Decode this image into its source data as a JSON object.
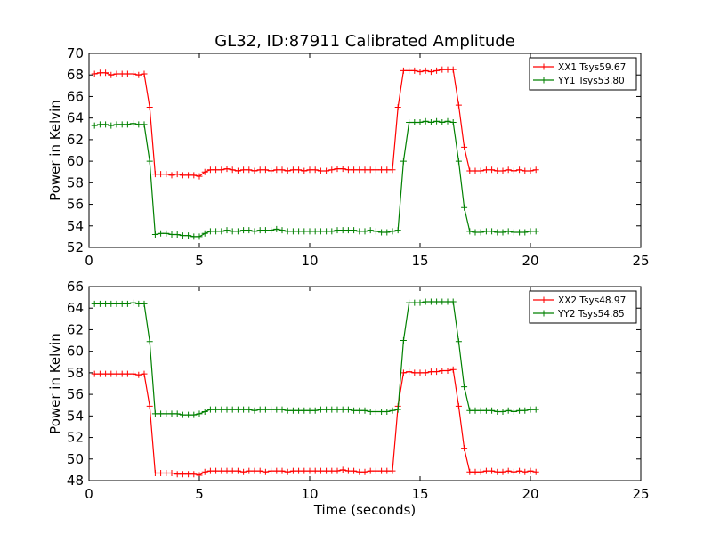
{
  "figure": {
    "title": "GL32, ID:87911 Calibrated Amplitude"
  },
  "chart_data": [
    {
      "type": "line",
      "title": "GL32, ID:87911 Calibrated Amplitude",
      "xlabel": "",
      "ylabel": "Power in Kelvin",
      "xlim": [
        0,
        25
      ],
      "ylim": [
        52,
        70
      ],
      "xticks": [
        0,
        5,
        10,
        15,
        20,
        25
      ],
      "yticks": [
        52,
        54,
        56,
        58,
        60,
        62,
        64,
        66,
        68,
        70
      ],
      "grid": false,
      "legend_position": "top-right",
      "x": [
        0.25,
        0.5,
        0.75,
        1.0,
        1.25,
        1.5,
        1.75,
        2.0,
        2.25,
        2.5,
        2.75,
        3.0,
        3.25,
        3.5,
        3.75,
        4.0,
        4.25,
        4.5,
        4.75,
        5.0,
        5.25,
        5.5,
        5.75,
        6.0,
        6.25,
        6.5,
        6.75,
        7.0,
        7.25,
        7.5,
        7.75,
        8.0,
        8.25,
        8.5,
        8.75,
        9.0,
        9.25,
        9.5,
        9.75,
        10.0,
        10.25,
        10.5,
        10.75,
        11.0,
        11.25,
        11.5,
        11.75,
        12.0,
        12.25,
        12.5,
        12.75,
        13.0,
        13.25,
        13.5,
        13.75,
        14.0,
        14.25,
        14.5,
        14.75,
        15.0,
        15.25,
        15.5,
        15.75,
        16.0,
        16.25,
        16.5,
        16.75,
        17.0,
        17.25,
        17.5,
        17.75,
        18.0,
        18.25,
        18.5,
        18.75,
        19.0,
        19.25,
        19.5,
        19.75,
        20.0,
        20.25
      ],
      "series": [
        {
          "name": "XX1 Tsys59.67",
          "color": "#ff0000",
          "values": [
            68.1,
            68.2,
            68.2,
            68.0,
            68.1,
            68.1,
            68.1,
            68.1,
            68.0,
            68.1,
            65.0,
            58.8,
            58.8,
            58.8,
            58.7,
            58.8,
            58.7,
            58.7,
            58.7,
            58.6,
            59.0,
            59.2,
            59.2,
            59.2,
            59.3,
            59.2,
            59.1,
            59.2,
            59.2,
            59.1,
            59.2,
            59.2,
            59.1,
            59.2,
            59.2,
            59.1,
            59.2,
            59.2,
            59.1,
            59.2,
            59.2,
            59.1,
            59.1,
            59.2,
            59.3,
            59.3,
            59.2,
            59.2,
            59.2,
            59.2,
            59.2,
            59.2,
            59.2,
            59.2,
            59.2,
            65.0,
            68.4,
            68.4,
            68.4,
            68.3,
            68.4,
            68.3,
            68.4,
            68.5,
            68.5,
            68.5,
            65.2,
            61.3,
            59.1,
            59.1,
            59.1,
            59.2,
            59.2,
            59.1,
            59.1,
            59.2,
            59.1,
            59.2,
            59.1,
            59.1,
            59.2
          ]
        },
        {
          "name": "YY1 Tsys53.80",
          "color": "#008000",
          "values": [
            63.3,
            63.4,
            63.4,
            63.3,
            63.4,
            63.4,
            63.4,
            63.5,
            63.4,
            63.4,
            60.0,
            53.2,
            53.3,
            53.3,
            53.2,
            53.2,
            53.1,
            53.1,
            53.0,
            53.0,
            53.3,
            53.5,
            53.5,
            53.5,
            53.6,
            53.5,
            53.5,
            53.6,
            53.6,
            53.5,
            53.6,
            53.6,
            53.6,
            53.7,
            53.6,
            53.5,
            53.5,
            53.5,
            53.5,
            53.5,
            53.5,
            53.5,
            53.5,
            53.5,
            53.6,
            53.6,
            53.6,
            53.6,
            53.5,
            53.5,
            53.6,
            53.5,
            53.4,
            53.4,
            53.5,
            53.6,
            60.0,
            63.6,
            63.6,
            63.6,
            63.7,
            63.6,
            63.7,
            63.6,
            63.7,
            63.6,
            60.0,
            55.7,
            53.5,
            53.4,
            53.4,
            53.5,
            53.5,
            53.4,
            53.4,
            53.5,
            53.4,
            53.4,
            53.4,
            53.5,
            53.5
          ]
        }
      ]
    },
    {
      "type": "line",
      "title": "",
      "xlabel": "Time (seconds)",
      "ylabel": "Power in Kelvin",
      "xlim": [
        0,
        25
      ],
      "ylim": [
        48,
        66
      ],
      "xticks": [
        0,
        5,
        10,
        15,
        20,
        25
      ],
      "yticks": [
        48,
        50,
        52,
        54,
        56,
        58,
        60,
        62,
        64,
        66
      ],
      "grid": false,
      "legend_position": "top-right",
      "x": [
        0.25,
        0.5,
        0.75,
        1.0,
        1.25,
        1.5,
        1.75,
        2.0,
        2.25,
        2.5,
        2.75,
        3.0,
        3.25,
        3.5,
        3.75,
        4.0,
        4.25,
        4.5,
        4.75,
        5.0,
        5.25,
        5.5,
        5.75,
        6.0,
        6.25,
        6.5,
        6.75,
        7.0,
        7.25,
        7.5,
        7.75,
        8.0,
        8.25,
        8.5,
        8.75,
        9.0,
        9.25,
        9.5,
        9.75,
        10.0,
        10.25,
        10.5,
        10.75,
        11.0,
        11.25,
        11.5,
        11.75,
        12.0,
        12.25,
        12.5,
        12.75,
        13.0,
        13.25,
        13.5,
        13.75,
        14.0,
        14.25,
        14.5,
        14.75,
        15.0,
        15.25,
        15.5,
        15.75,
        16.0,
        16.25,
        16.5,
        16.75,
        17.0,
        17.25,
        17.5,
        17.75,
        18.0,
        18.25,
        18.5,
        18.75,
        19.0,
        19.25,
        19.5,
        19.75,
        20.0,
        20.25
      ],
      "series": [
        {
          "name": "XX2 Tsys48.97",
          "color": "#ff0000",
          "values": [
            57.9,
            57.9,
            57.9,
            57.9,
            57.9,
            57.9,
            57.9,
            57.9,
            57.8,
            57.9,
            54.9,
            48.7,
            48.7,
            48.7,
            48.7,
            48.6,
            48.6,
            48.6,
            48.6,
            48.5,
            48.8,
            48.9,
            48.9,
            48.9,
            48.9,
            48.9,
            48.9,
            48.8,
            48.9,
            48.9,
            48.9,
            48.8,
            48.9,
            48.9,
            48.9,
            48.8,
            48.9,
            48.9,
            48.9,
            48.9,
            48.9,
            48.9,
            48.9,
            48.9,
            48.9,
            49.0,
            48.9,
            48.9,
            48.8,
            48.8,
            48.9,
            48.9,
            48.9,
            48.9,
            48.9,
            54.9,
            58.0,
            58.1,
            58.0,
            58.0,
            58.0,
            58.1,
            58.1,
            58.2,
            58.2,
            58.3,
            54.9,
            51.0,
            48.8,
            48.8,
            48.8,
            48.9,
            48.9,
            48.8,
            48.8,
            48.9,
            48.8,
            48.9,
            48.8,
            48.9,
            48.8
          ]
        },
        {
          "name": "YY2 Tsys54.85",
          "color": "#008000",
          "values": [
            64.4,
            64.4,
            64.4,
            64.4,
            64.4,
            64.4,
            64.4,
            64.5,
            64.4,
            64.4,
            60.9,
            54.2,
            54.2,
            54.2,
            54.2,
            54.2,
            54.1,
            54.1,
            54.1,
            54.2,
            54.4,
            54.6,
            54.6,
            54.6,
            54.6,
            54.6,
            54.6,
            54.6,
            54.6,
            54.5,
            54.6,
            54.6,
            54.6,
            54.6,
            54.6,
            54.5,
            54.5,
            54.5,
            54.5,
            54.5,
            54.5,
            54.6,
            54.6,
            54.6,
            54.6,
            54.6,
            54.6,
            54.5,
            54.5,
            54.5,
            54.4,
            54.4,
            54.4,
            54.4,
            54.5,
            54.6,
            61.0,
            64.5,
            64.5,
            64.5,
            64.6,
            64.6,
            64.6,
            64.6,
            64.6,
            64.6,
            60.9,
            56.7,
            54.5,
            54.5,
            54.5,
            54.5,
            54.5,
            54.4,
            54.4,
            54.5,
            54.4,
            54.5,
            54.5,
            54.6,
            54.6
          ]
        }
      ]
    }
  ]
}
